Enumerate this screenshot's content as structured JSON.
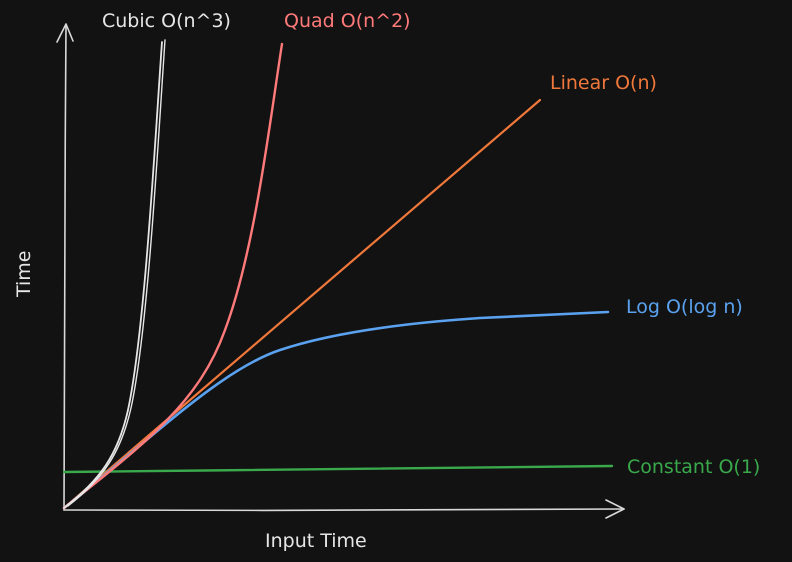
{
  "axes": {
    "x_label": "Input Time",
    "y_label": "Time"
  },
  "curves": {
    "cubic": {
      "label": "Cubic O(n^3)",
      "color": "#e6e6e6"
    },
    "quad": {
      "label": "Quad O(n^2)",
      "color": "#ff7a7a"
    },
    "linear": {
      "label": "Linear O(n)",
      "color": "#f0783a"
    },
    "log": {
      "label": "Log O(log n)",
      "color": "#5aa2f0"
    },
    "constant": {
      "label": "Constant O(1)",
      "color": "#39a94c"
    }
  },
  "colors": {
    "background": "#121212",
    "axis": "#d9d9d9"
  }
}
